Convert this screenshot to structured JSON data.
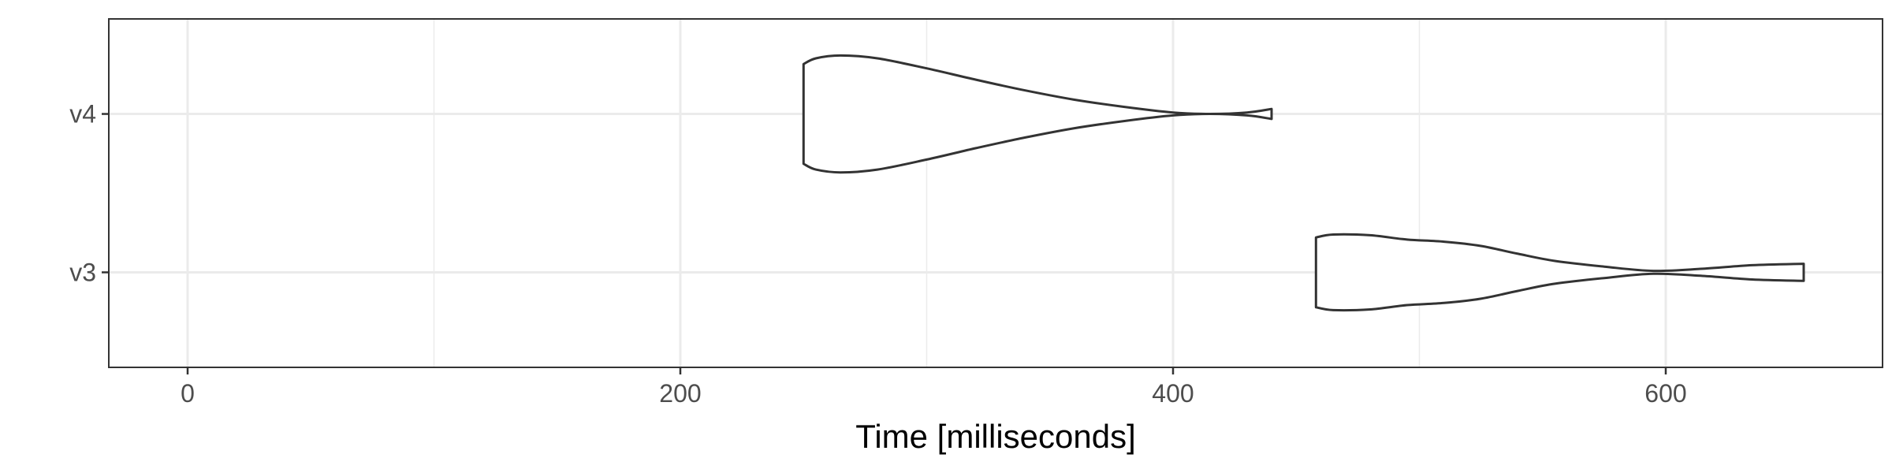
{
  "chart_data": {
    "type": "violin",
    "title": "",
    "xlabel": "Time [milliseconds]",
    "ylabel": "",
    "xlim": [
      -32,
      688
    ],
    "x_ticks": [
      0,
      200,
      400,
      600
    ],
    "x_tick_labels": [
      "0",
      "200",
      "400",
      "600"
    ],
    "x_minor_gridlines": [
      100,
      300,
      500
    ],
    "categories": [
      "v3",
      "v4"
    ],
    "grid": true,
    "theme_colors": {
      "outline": "#333333",
      "grid": "#ebebeb",
      "panel_border": "#333333",
      "background": "#ffffff"
    },
    "series": [
      {
        "category": "v4",
        "min": 250,
        "max": 440,
        "profile": [
          [
            250,
            0.7
          ],
          [
            255,
            0.78
          ],
          [
            265,
            0.82
          ],
          [
            280,
            0.78
          ],
          [
            300,
            0.64
          ],
          [
            320,
            0.48
          ],
          [
            340,
            0.33
          ],
          [
            360,
            0.2
          ],
          [
            380,
            0.1
          ],
          [
            400,
            0.02
          ],
          [
            415,
            0.0
          ],
          [
            430,
            0.02
          ],
          [
            440,
            0.07
          ]
        ]
      },
      {
        "category": "v3",
        "min": 458,
        "max": 656,
        "profile": [
          [
            458,
            0.49
          ],
          [
            465,
            0.53
          ],
          [
            480,
            0.52
          ],
          [
            495,
            0.46
          ],
          [
            510,
            0.43
          ],
          [
            525,
            0.37
          ],
          [
            540,
            0.26
          ],
          [
            555,
            0.16
          ],
          [
            575,
            0.08
          ],
          [
            595,
            0.02
          ],
          [
            615,
            0.05
          ],
          [
            635,
            0.1
          ],
          [
            656,
            0.12
          ]
        ]
      }
    ]
  }
}
